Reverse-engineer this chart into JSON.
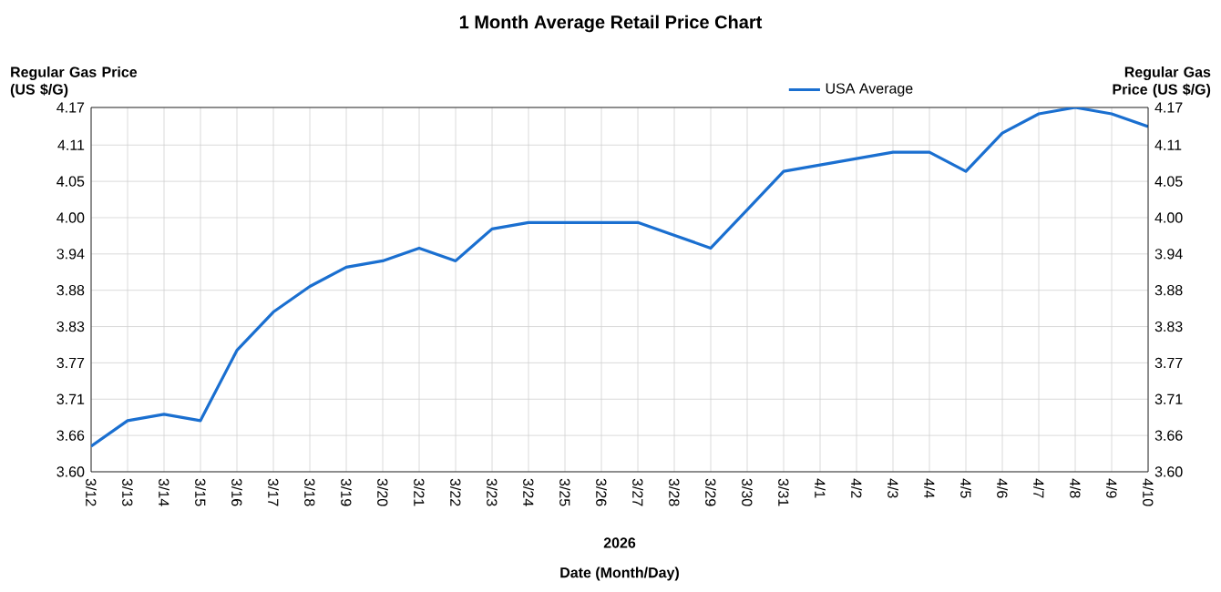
{
  "chart_data": {
    "type": "line",
    "title": "1 Month Average Retail Price Chart",
    "xlabel": "Date (Month/Day)",
    "ylabel": "Regular Gas Price (US $/G)",
    "y2label": "Regular Gas Price (US $/G)",
    "categories": [
      "3/12",
      "3/13",
      "3/14",
      "3/15",
      "3/16",
      "3/17",
      "3/18",
      "3/19",
      "3/20",
      "3/21",
      "3/22",
      "3/23",
      "3/24",
      "3/25",
      "3/26",
      "3/27",
      "3/28",
      "3/29",
      "3/30",
      "3/31",
      "4/1",
      "4/2",
      "4/3",
      "4/4",
      "4/5",
      "4/6",
      "4/7",
      "4/8",
      "4/9",
      "4/10"
    ],
    "series": [
      {
        "name": "USA Average",
        "color": "#1a6fd0",
        "values": [
          3.64,
          3.68,
          3.69,
          3.68,
          3.79,
          3.85,
          3.89,
          3.92,
          3.93,
          3.95,
          3.93,
          3.98,
          3.99,
          3.99,
          3.99,
          3.99,
          3.97,
          3.95,
          4.01,
          4.07,
          4.08,
          4.09,
          4.1,
          4.1,
          4.07,
          4.13,
          4.16,
          4.17,
          4.16,
          4.14
        ]
      }
    ],
    "ylim": [
      3.6,
      4.17
    ],
    "yticks": [
      {
        "value": 3.6,
        "label": "3.60"
      },
      {
        "value": 3.6568,
        "label": "3.66"
      },
      {
        "value": 3.7136,
        "label": "3.71"
      },
      {
        "value": 3.7704,
        "label": "3.77"
      },
      {
        "value": 3.8272,
        "label": "3.83"
      },
      {
        "value": 3.884,
        "label": "3.88"
      },
      {
        "value": 3.9408,
        "label": "3.94"
      },
      {
        "value": 3.9976,
        "label": "4.00"
      },
      {
        "value": 4.0544,
        "label": "4.05"
      },
      {
        "value": 4.1112,
        "label": "4.11"
      },
      {
        "value": 4.17,
        "label": "4.17"
      }
    ],
    "y2lim": [
      3.6,
      4.17
    ],
    "y2ticks": [
      {
        "value": 3.6,
        "label": "3.60"
      },
      {
        "value": 3.6568,
        "label": "3.66"
      },
      {
        "value": 3.7136,
        "label": "3.71"
      },
      {
        "value": 3.7704,
        "label": "3.77"
      },
      {
        "value": 3.8272,
        "label": "3.83"
      },
      {
        "value": 3.884,
        "label": "3.88"
      },
      {
        "value": 3.9408,
        "label": "3.94"
      },
      {
        "value": 3.9976,
        "label": "4.00"
      },
      {
        "value": 4.0544,
        "label": "4.05"
      },
      {
        "value": 4.1112,
        "label": "4.11"
      },
      {
        "value": 4.17,
        "label": "4.17"
      }
    ],
    "annotations": [
      "2026"
    ],
    "grid": true,
    "legend": "top",
    "marker": "none",
    "line_style": "solid"
  }
}
